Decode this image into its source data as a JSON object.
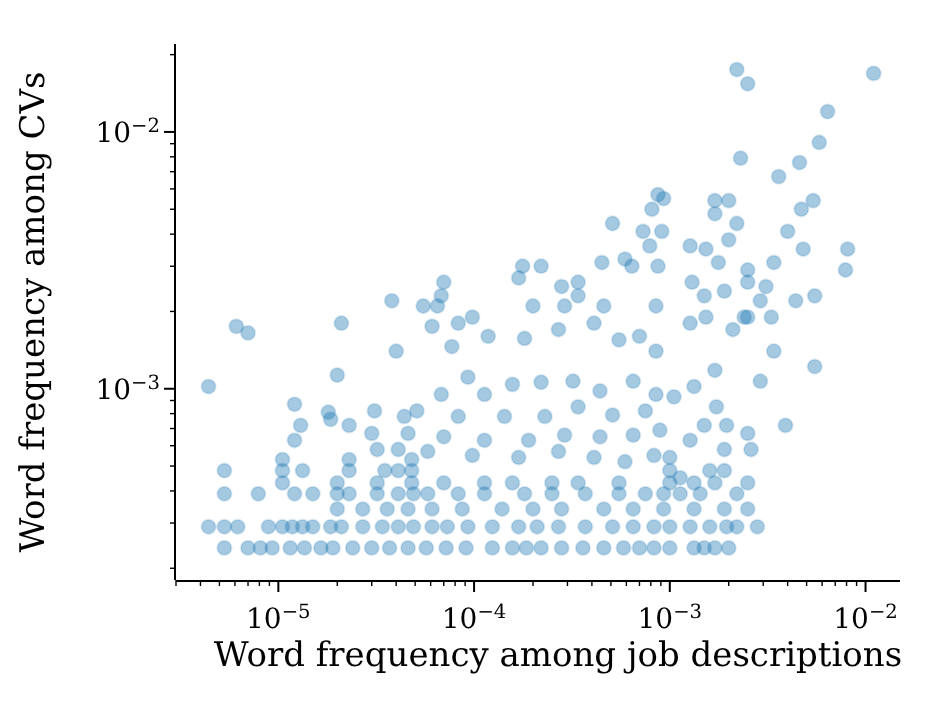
{
  "chart_data": {
    "type": "scatter",
    "xlabel": "Word frequency among job descriptions",
    "ylabel": "Word frequency among CVs",
    "log": "xy",
    "marker": "circle",
    "color": "#1f77b4",
    "xlim": [
      3e-06,
      0.015
    ],
    "ylim": [
      0.00018,
      0.022
    ],
    "xticks": [
      {
        "value": 3e-06,
        "label": null
      },
      {
        "value": 4e-06,
        "label": null
      },
      {
        "value": 5e-06,
        "label": null
      },
      {
        "value": 6e-06,
        "label": null
      },
      {
        "value": 7e-06,
        "label": null
      },
      {
        "value": 8e-06,
        "label": null
      },
      {
        "value": 9e-06,
        "label": null
      },
      {
        "value": 1e-05,
        "label": "10$^{−5}$"
      },
      {
        "value": 2e-05,
        "label": null
      },
      {
        "value": 3e-05,
        "label": null
      },
      {
        "value": 4e-05,
        "label": null
      },
      {
        "value": 5e-05,
        "label": null
      },
      {
        "value": 6e-05,
        "label": null
      },
      {
        "value": 7e-05,
        "label": null
      },
      {
        "value": 8e-05,
        "label": null
      },
      {
        "value": 9e-05,
        "label": null
      },
      {
        "value": 0.0001,
        "label": "10$^{−4}$"
      },
      {
        "value": 0.0002,
        "label": null
      },
      {
        "value": 0.0003,
        "label": null
      },
      {
        "value": 0.0004,
        "label": null
      },
      {
        "value": 0.0005,
        "label": null
      },
      {
        "value": 0.0006,
        "label": null
      },
      {
        "value": 0.0007,
        "label": null
      },
      {
        "value": 0.0008,
        "label": null
      },
      {
        "value": 0.0009,
        "label": null
      },
      {
        "value": 0.001,
        "label": "10$^{−3}$"
      },
      {
        "value": 0.002,
        "label": null
      },
      {
        "value": 0.003,
        "label": null
      },
      {
        "value": 0.004,
        "label": null
      },
      {
        "value": 0.005,
        "label": null
      },
      {
        "value": 0.006,
        "label": null
      },
      {
        "value": 0.007,
        "label": null
      },
      {
        "value": 0.008,
        "label": null
      },
      {
        "value": 0.009,
        "label": null
      },
      {
        "value": 0.01,
        "label": "10$^{−2}$"
      }
    ],
    "yticks": [
      {
        "value": 0.0002,
        "label": null
      },
      {
        "value": 0.0003,
        "label": null
      },
      {
        "value": 0.0004,
        "label": null
      },
      {
        "value": 0.0005,
        "label": null
      },
      {
        "value": 0.0006,
        "label": null
      },
      {
        "value": 0.0007,
        "label": null
      },
      {
        "value": 0.0008,
        "label": null
      },
      {
        "value": 0.0009,
        "label": null
      },
      {
        "value": 0.001,
        "label": "10$^{−3}$"
      },
      {
        "value": 0.002,
        "label": null
      },
      {
        "value": 0.003,
        "label": null
      },
      {
        "value": 0.004,
        "label": null
      },
      {
        "value": 0.005,
        "label": null
      },
      {
        "value": 0.006,
        "label": null
      },
      {
        "value": 0.007,
        "label": null
      },
      {
        "value": 0.008,
        "label": null
      },
      {
        "value": 0.009,
        "label": null
      },
      {
        "value": 0.01,
        "label": "10$^{−2}$"
      },
      {
        "value": 0.02,
        "label": null
      }
    ],
    "x": [
      5.3e-06,
      7e-06,
      8.1e-06,
      9.3e-06,
      1.15e-05,
      1.36e-05,
      1.65e-05,
      1.9e-05,
      2.4e-05,
      3e-05,
      3.7e-05,
      4.6e-05,
      5.7e-05,
      7.2e-05,
      9.1e-05,
      0.000124,
      0.000157,
      0.000185,
      0.00022,
      0.00028,
      0.00036,
      0.00046,
      0.00058,
      0.0007,
      0.00083,
      0.001,
      0.00133,
      0.0015,
      0.0017,
      0.002,
      4.4e-06,
      5.3e-06,
      6.2e-06,
      8.9e-06,
      1.05e-05,
      1.18e-05,
      1.33e-05,
      1.5e-05,
      1.85e-05,
      2.1e-05,
      2.7e-05,
      3.4e-05,
      4.1e-05,
      4.9e-05,
      6.1e-05,
      7.3e-05,
      9.3e-05,
      0.000124,
      0.000169,
      0.00021,
      0.00027,
      0.00037,
      0.00051,
      0.00065,
      0.00083,
      0.001,
      0.00127,
      0.0016,
      0.00195,
      0.0022,
      0.0028,
      2e-05,
      2.7e-05,
      3.6e-05,
      4.6e-05,
      6.1e-05,
      8.7e-05,
      0.000139,
      0.0002,
      0.00028,
      0.00046,
      0.00065,
      0.00093,
      0.00133,
      0.0019,
      0.0025,
      5.3e-06,
      7.9e-06,
      1.21e-05,
      1.5e-05,
      2e-05,
      2.3e-05,
      3.2e-05,
      4.1e-05,
      4.9e-05,
      5.8e-05,
      8.3e-05,
      0.000113,
      0.000181,
      0.00025,
      0.00037,
      0.00055,
      0.00075,
      0.00093,
      0.00113,
      0.00143,
      1.05e-05,
      2e-05,
      3.2e-05,
      4.8e-05,
      7e-05,
      0.000113,
      0.000157,
      0.00025,
      0.00034,
      0.00055,
      0.001,
      0.00133,
      0.0017,
      0.0025,
      5.3e-06,
      1.05e-05,
      1.33e-05,
      2.3e-05,
      3.5e-05,
      4.1e-05,
      4.8e-05,
      0.001,
      0.0016,
      0.0019,
      3.8e-05,
      5.5e-05,
      6.1e-06,
      7e-06,
      4.4e-06,
      2.1e-05,
      4e-05,
      2e-05,
      1.21e-05,
      1.3e-05,
      1.21e-05,
      1.05e-05,
      1.8e-05,
      1.85e-05,
      2.3e-05,
      3.1e-05,
      4.4e-05,
      3e-05,
      4.6e-05,
      3.2e-05,
      4.1e-05,
      2.3e-05,
      4.8e-05,
      0.00051,
      0.00087,
      0.00081,
      0.00073,
      0.00091,
      0.00045,
      0.00059,
      0.00064,
      0.00079,
      0.00087,
      0.000177,
      0.000169,
      0.00022,
      7e-05,
      6.8e-05,
      6.5e-05,
      9.8e-05,
      0.00028,
      0.00034,
      0.00034,
      0.0002,
      0.00029,
      0.00046,
      0.00085,
      0.0022,
      0.0025,
      0.011,
      0.0064,
      0.0058,
      0.0023,
      0.0036,
      0.0046,
      0.0017,
      0.002,
      0.00093,
      0.0017,
      0.0054,
      0.0047,
      0.0022,
      0.004,
      0.002,
      0.00127,
      0.00153,
      0.0048,
      0.0081,
      0.00177,
      0.0025,
      0.0034,
      0.0079,
      0.0013,
      0.0025,
      0.0031,
      0.0015,
      0.0019,
      0.0029,
      0.0044,
      0.0055,
      0.00153,
      0.0033,
      0.0024,
      6.1e-05,
      8.3e-05,
      0.000118,
      0.000181,
      0.00027,
      0.00041,
      0.00055,
      0.0007,
      0.00085,
      7.7e-05,
      9.3e-05,
      0.000113,
      0.000157,
      0.00022,
      0.00032,
      0.00044,
      0.00065,
      0.00085,
      6.8e-05,
      8.3e-05,
      0.000143,
      0.00023,
      0.00034,
      0.00051,
      0.00075,
      7e-05,
      0.000113,
      0.00019,
      0.00029,
      0.00044,
      0.00065,
      0.00089,
      5.8e-05,
      9.8e-05,
      0.000169,
      0.00027,
      0.00041,
      0.00059,
      0.00083,
      5.1e-05,
      0.00127,
      0.0021,
      0.0025,
      0.0034,
      0.0055,
      0.0029,
      0.0039,
      0.0017,
      0.00133,
      0.00105,
      0.00173,
      0.0015,
      0.00195,
      0.0025,
      0.0019,
      0.0026,
      0.00127,
      0.001,
      0.0022,
      0.00113
    ],
    "values": [
      0.00024,
      0.00024,
      0.00024,
      0.00024,
      0.00024,
      0.00024,
      0.00024,
      0.00024,
      0.00024,
      0.00024,
      0.00024,
      0.00024,
      0.00024,
      0.00024,
      0.00024,
      0.00024,
      0.00024,
      0.00024,
      0.00024,
      0.00024,
      0.00024,
      0.00024,
      0.00024,
      0.00024,
      0.00024,
      0.00024,
      0.00024,
      0.00024,
      0.00024,
      0.00024,
      0.00029,
      0.00029,
      0.00029,
      0.00029,
      0.00029,
      0.00029,
      0.00029,
      0.00029,
      0.00029,
      0.00029,
      0.00029,
      0.00029,
      0.00029,
      0.00029,
      0.00029,
      0.00029,
      0.00029,
      0.00029,
      0.00029,
      0.00029,
      0.00029,
      0.00029,
      0.00029,
      0.00029,
      0.00029,
      0.00029,
      0.00029,
      0.00029,
      0.00029,
      0.00029,
      0.00029,
      0.00034,
      0.00034,
      0.00034,
      0.00034,
      0.00034,
      0.00034,
      0.00034,
      0.00034,
      0.00034,
      0.00034,
      0.00034,
      0.00034,
      0.00034,
      0.00034,
      0.00034,
      0.00039,
      0.00039,
      0.00039,
      0.00039,
      0.00039,
      0.00039,
      0.00039,
      0.00039,
      0.00039,
      0.00039,
      0.00039,
      0.00039,
      0.00039,
      0.00039,
      0.00039,
      0.00039,
      0.00039,
      0.00039,
      0.00039,
      0.00039,
      0.00043,
      0.00043,
      0.00043,
      0.00043,
      0.00043,
      0.00043,
      0.00043,
      0.00043,
      0.00043,
      0.00043,
      0.00043,
      0.00043,
      0.00043,
      0.00043,
      0.00048,
      0.00048,
      0.00048,
      0.00048,
      0.00048,
      0.00048,
      0.00048,
      0.00048,
      0.00048,
      0.00048,
      0.0022,
      0.0021,
      0.00175,
      0.00165,
      0.00102,
      0.0018,
      0.0014,
      0.00113,
      0.00087,
      0.00072,
      0.00063,
      0.00053,
      0.00081,
      0.00076,
      0.00072,
      0.00082,
      0.00078,
      0.00067,
      0.00067,
      0.00058,
      0.00058,
      0.00053,
      0.00053,
      0.0044,
      0.0057,
      0.005,
      0.0041,
      0.0041,
      0.0031,
      0.0032,
      0.003,
      0.0036,
      0.003,
      0.003,
      0.0027,
      0.003,
      0.0026,
      0.0023,
      0.0021,
      0.0019,
      0.0025,
      0.0026,
      0.0023,
      0.0021,
      0.0021,
      0.0021,
      0.0021,
      0.0175,
      0.0154,
      0.0169,
      0.012,
      0.0091,
      0.0079,
      0.0067,
      0.0076,
      0.0054,
      0.0054,
      0.0055,
      0.0048,
      0.0054,
      0.005,
      0.0044,
      0.0041,
      0.0038,
      0.0036,
      0.0035,
      0.0035,
      0.0035,
      0.0031,
      0.0029,
      0.0031,
      0.0029,
      0.0026,
      0.0026,
      0.0025,
      0.0023,
      0.0024,
      0.0022,
      0.0022,
      0.0023,
      0.0019,
      0.0019,
      0.0019,
      0.00175,
      0.0018,
      0.0016,
      0.00157,
      0.0017,
      0.0018,
      0.00155,
      0.0016,
      0.0014,
      0.00146,
      0.00111,
      0.00095,
      0.00104,
      0.00106,
      0.00107,
      0.00098,
      0.00107,
      0.00095,
      0.00095,
      0.00078,
      0.00078,
      0.00078,
      0.00085,
      0.00079,
      0.00082,
      0.00065,
      0.00063,
      0.00063,
      0.00066,
      0.00065,
      0.00066,
      0.00069,
      0.00057,
      0.00055,
      0.00054,
      0.00057,
      0.00054,
      0.00052,
      0.00055,
      0.00082,
      0.0018,
      0.0017,
      0.0019,
      0.0014,
      0.00122,
      0.00107,
      0.00072,
      0.00118,
      0.00102,
      0.00093,
      0.00085,
      0.00072,
      0.00072,
      0.00067,
      0.00058,
      0.00058,
      0.00063,
      0.00054,
      0.00039,
      0.00045
    ]
  }
}
